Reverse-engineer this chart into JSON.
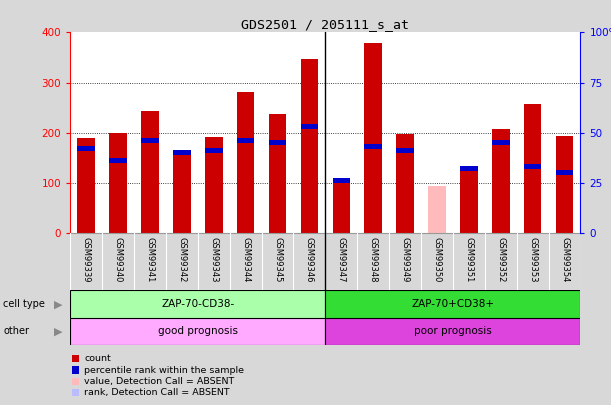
{
  "title": "GDS2501 / 205111_s_at",
  "samples": [
    "GSM99339",
    "GSM99340",
    "GSM99341",
    "GSM99342",
    "GSM99343",
    "GSM99344",
    "GSM99345",
    "GSM99346",
    "GSM99347",
    "GSM99348",
    "GSM99349",
    "GSM99350",
    "GSM99351",
    "GSM99352",
    "GSM99353",
    "GSM99354"
  ],
  "count_values": [
    190,
    200,
    243,
    163,
    192,
    282,
    237,
    347,
    104,
    378,
    197,
    0,
    128,
    208,
    258,
    193
  ],
  "rank_pct": [
    42,
    36,
    46,
    40,
    41,
    46,
    45,
    53,
    26,
    43,
    41,
    0,
    32,
    45,
    33,
    30
  ],
  "absent_count": [
    0,
    0,
    0,
    0,
    0,
    0,
    0,
    0,
    0,
    0,
    0,
    93,
    0,
    0,
    0,
    0
  ],
  "absent_rank_pct": [
    0,
    0,
    0,
    0,
    0,
    0,
    0,
    0,
    0,
    0,
    0,
    0,
    0,
    0,
    0,
    0
  ],
  "count_color": "#cc0000",
  "rank_color": "#0000cc",
  "absent_count_color": "#ffbbbb",
  "absent_rank_color": "#bbbbff",
  "group1_samples": 8,
  "group1_label": "ZAP-70-CD38-",
  "group1_bg": "#aaffaa",
  "group2_label": "ZAP-70+CD38+",
  "group2_bg": "#33dd33",
  "other1_label": "good prognosis",
  "other1_bg": "#ffaaff",
  "other2_label": "poor prognosis",
  "other2_bg": "#dd44dd",
  "cell_type_label": "cell type",
  "other_label": "other",
  "ylim_left": [
    0,
    400
  ],
  "ylim_right": [
    0,
    100
  ],
  "yticks_left": [
    0,
    100,
    200,
    300,
    400
  ],
  "yticks_right": [
    0,
    25,
    50,
    75,
    100
  ],
  "yticklabels_right": [
    "0",
    "25",
    "50",
    "75",
    "100%"
  ],
  "bar_width": 0.55,
  "background_color": "#d8d8d8",
  "plot_bg": "#ffffff",
  "legend_items": [
    {
      "color": "#cc0000",
      "label": "count"
    },
    {
      "color": "#0000cc",
      "label": "percentile rank within the sample"
    },
    {
      "color": "#ffbbbb",
      "label": "value, Detection Call = ABSENT"
    },
    {
      "color": "#bbbbff",
      "label": "rank, Detection Call = ABSENT"
    }
  ]
}
